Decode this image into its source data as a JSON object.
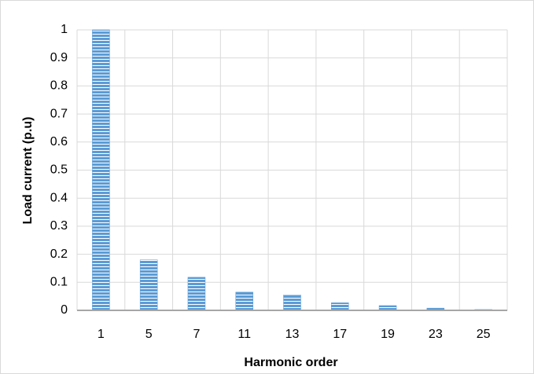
{
  "chart_data": {
    "type": "bar",
    "x_label": "Harmonic order",
    "y_label": "Load current (p.u)",
    "categories": [
      "1",
      "5",
      "7",
      "11",
      "13",
      "17",
      "19",
      "23",
      "25"
    ],
    "values": [
      1,
      0.18,
      0.118,
      0.065,
      0.055,
      0.027,
      0.017,
      0.008,
      0.003
    ],
    "color": "#5b9bd5",
    "ylim": [
      0,
      1
    ],
    "yticks": [
      0,
      0.1,
      0.2,
      0.3,
      0.4,
      0.5,
      0.6,
      0.7,
      0.8,
      0.9,
      1
    ],
    "grid": true
  }
}
